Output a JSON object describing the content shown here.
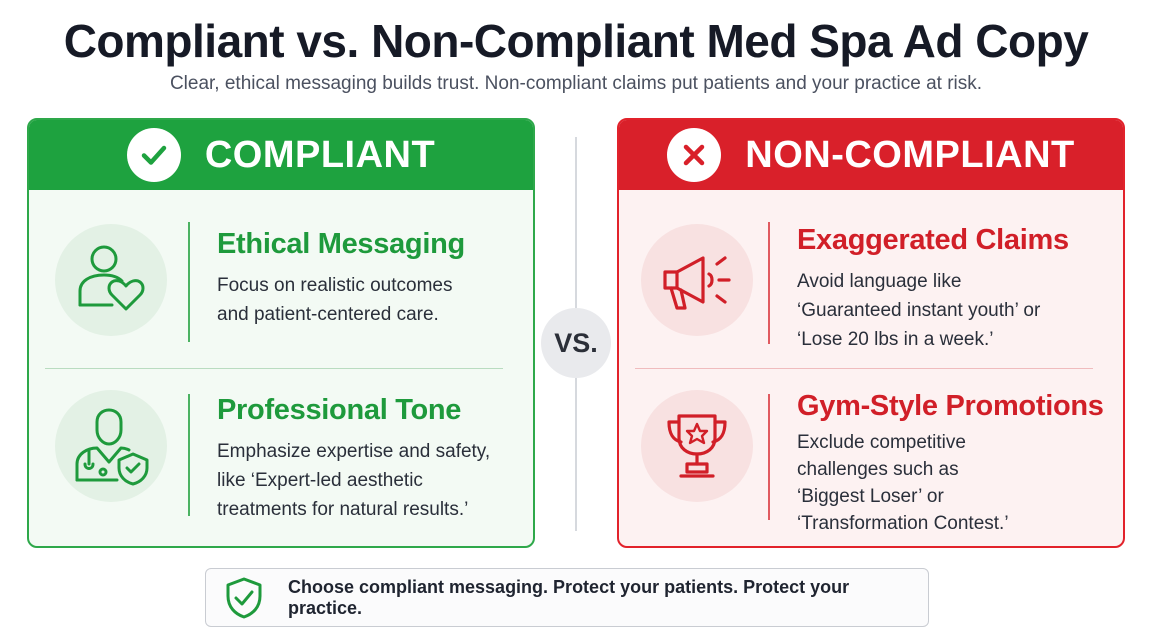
{
  "header": {
    "title": "Compliant vs. Non-Compliant Med Spa Ad Copy",
    "subtitle": "Clear, ethical messaging builds trust. Non-compliant claims put patients and your practice at risk."
  },
  "compliant": {
    "heading": "COMPLIANT",
    "accent_color": "#1ea23f",
    "items": [
      {
        "icon": "person-heart-icon",
        "title": "Ethical Messaging",
        "lines": [
          "Focus on realistic outcomes",
          "and patient-centered care."
        ]
      },
      {
        "icon": "doctor-shield-icon",
        "title": "Professional Tone",
        "lines": [
          "Emphasize expertise and safety,",
          "like ‘Expert-led aesthetic",
          "treatments for natural results.’"
        ]
      }
    ]
  },
  "noncompliant": {
    "heading": "NON-COMPLIANT",
    "accent_color": "#d9202a",
    "items": [
      {
        "icon": "megaphone-icon",
        "title": "Exaggerated Claims",
        "lines": [
          "Avoid language like",
          "‘Guaranteed instant youth’ or",
          "‘Lose 20 lbs in a week.’"
        ]
      },
      {
        "icon": "trophy-icon",
        "title": "Gym-Style Promotions",
        "lines": [
          "Exclude competitive",
          "challenges such as",
          "‘Biggest Loser’ or",
          "‘Transformation Contest.’"
        ]
      }
    ]
  },
  "vs_label": "VS.",
  "footer": {
    "icon": "shield-check-icon",
    "text": "Choose compliant messaging. Protect your patients. Protect your practice."
  }
}
